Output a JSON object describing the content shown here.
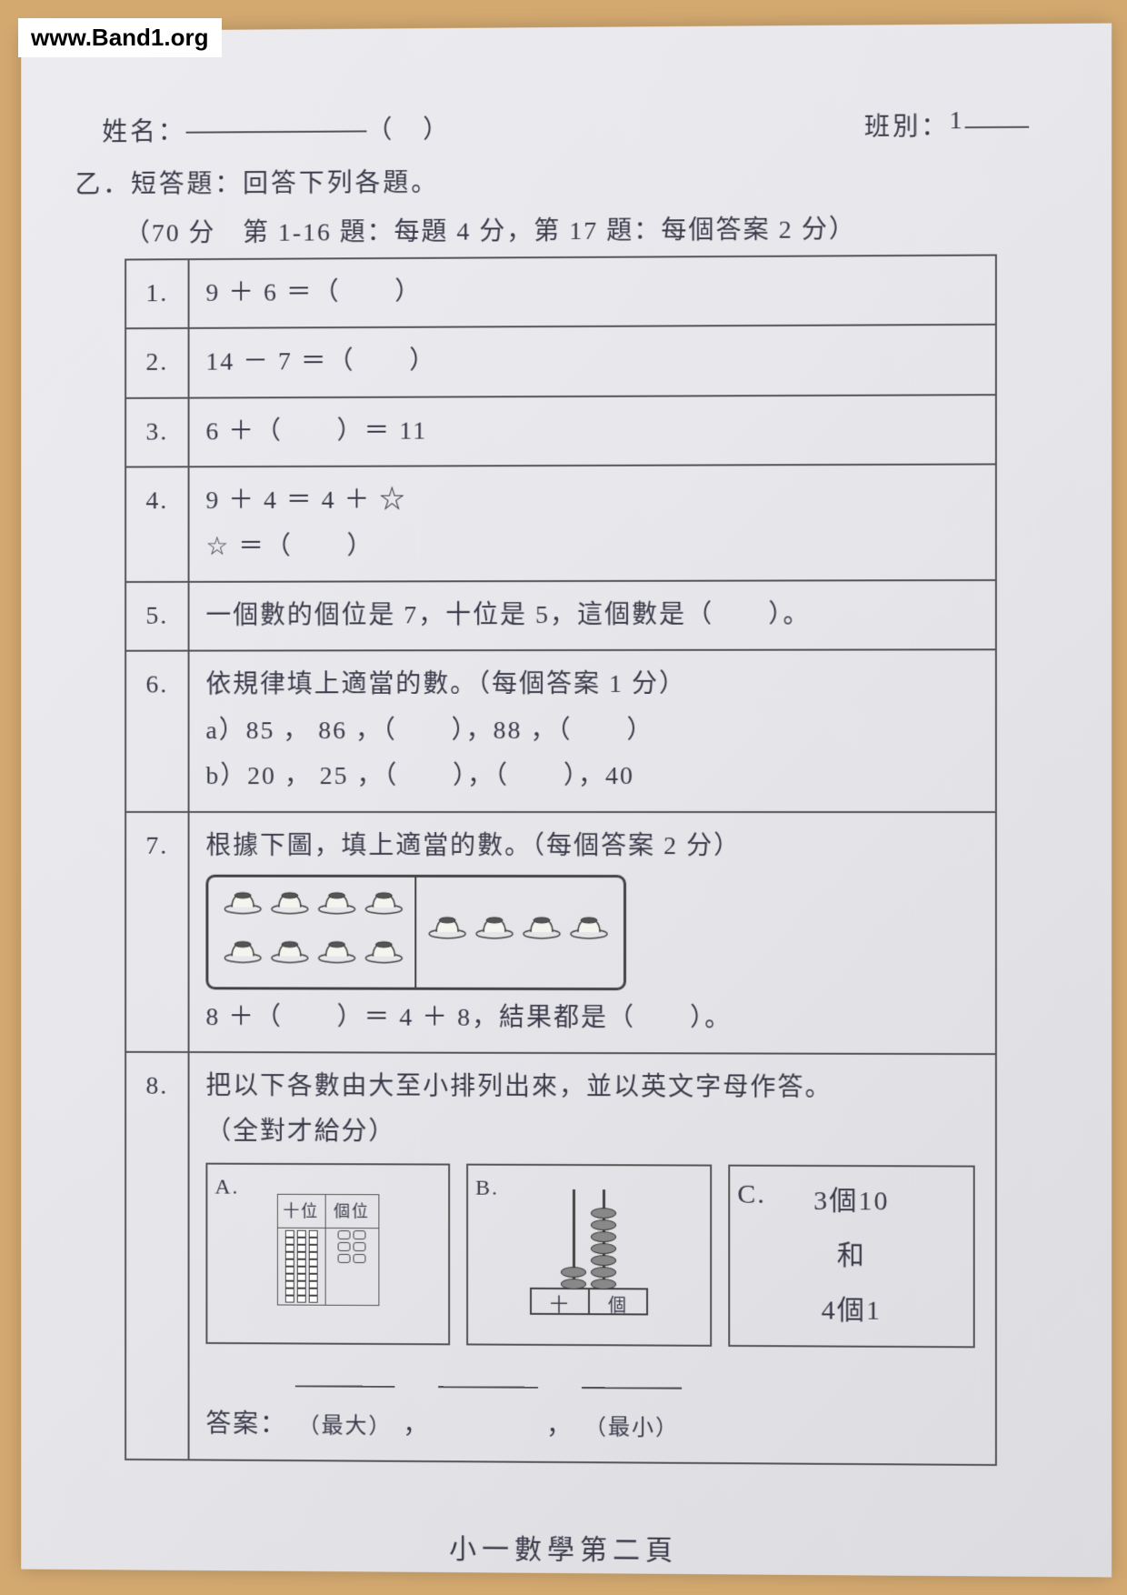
{
  "watermark": "www.Band1.org",
  "header": {
    "name_label": "姓名：",
    "paren": "（　）",
    "class_label": "班別：",
    "class_value": "1"
  },
  "section": "乙．短答題：回答下列各題。",
  "scoring": "（70 分　第 1-16 題：每題 4 分，第 17 題：每個答案 2 分）",
  "q1": {
    "num": "1.",
    "text": "9 ＋ 6 ＝（　　）"
  },
  "q2": {
    "num": "2.",
    "text": "14 － 7 ＝（　　）"
  },
  "q3": {
    "num": "3.",
    "text": "6 ＋（　　）＝ 11"
  },
  "q4": {
    "num": "4.",
    "line1": "9 ＋ 4 ＝ 4 ＋ ☆",
    "line2": "☆ ＝（　　）"
  },
  "q5": {
    "num": "5.",
    "text": "一個數的個位是 7，十位是 5，這個數是（　　）。"
  },
  "q6": {
    "num": "6.",
    "intro": "依規律填上適當的數。（每個答案 1 分）",
    "a": "a）85 ， 86 ，（　　），88 ，（　　）",
    "b": "b）20 ， 25 ，（　　），（　　），40"
  },
  "q7": {
    "num": "7.",
    "intro": "根據下圖，填上適當的數。（每個答案 2 分）",
    "equation": "8 ＋（　　）＝ 4 ＋ 8，結果都是（　　）。",
    "left_count": 8,
    "right_count": 4
  },
  "q8": {
    "num": "8.",
    "intro": "把以下各數由大至小排列出來，並以英文字母作答。",
    "note": "（全對才給分）",
    "boxA": {
      "label": "A.",
      "h_tens": "十位",
      "h_ones": "個位",
      "tens_sticks": 3,
      "ones_dots": 6
    },
    "boxB": {
      "label": "B.",
      "tens_beads": 2,
      "ones_beads": 7,
      "base_t": "十",
      "base_o": "個"
    },
    "boxC": {
      "label": "C.",
      "line1": "3個10",
      "line2": "和",
      "line3": "4個1"
    },
    "answer_label": "答案：",
    "sub_big": "（最大）",
    "sub_small": "（最小）"
  },
  "footer": "小一數學第二頁",
  "colors": {
    "paper_bg": "#e8e8ec",
    "text": "#3a3a4a",
    "border": "#555555",
    "wood": "#d4a970"
  }
}
